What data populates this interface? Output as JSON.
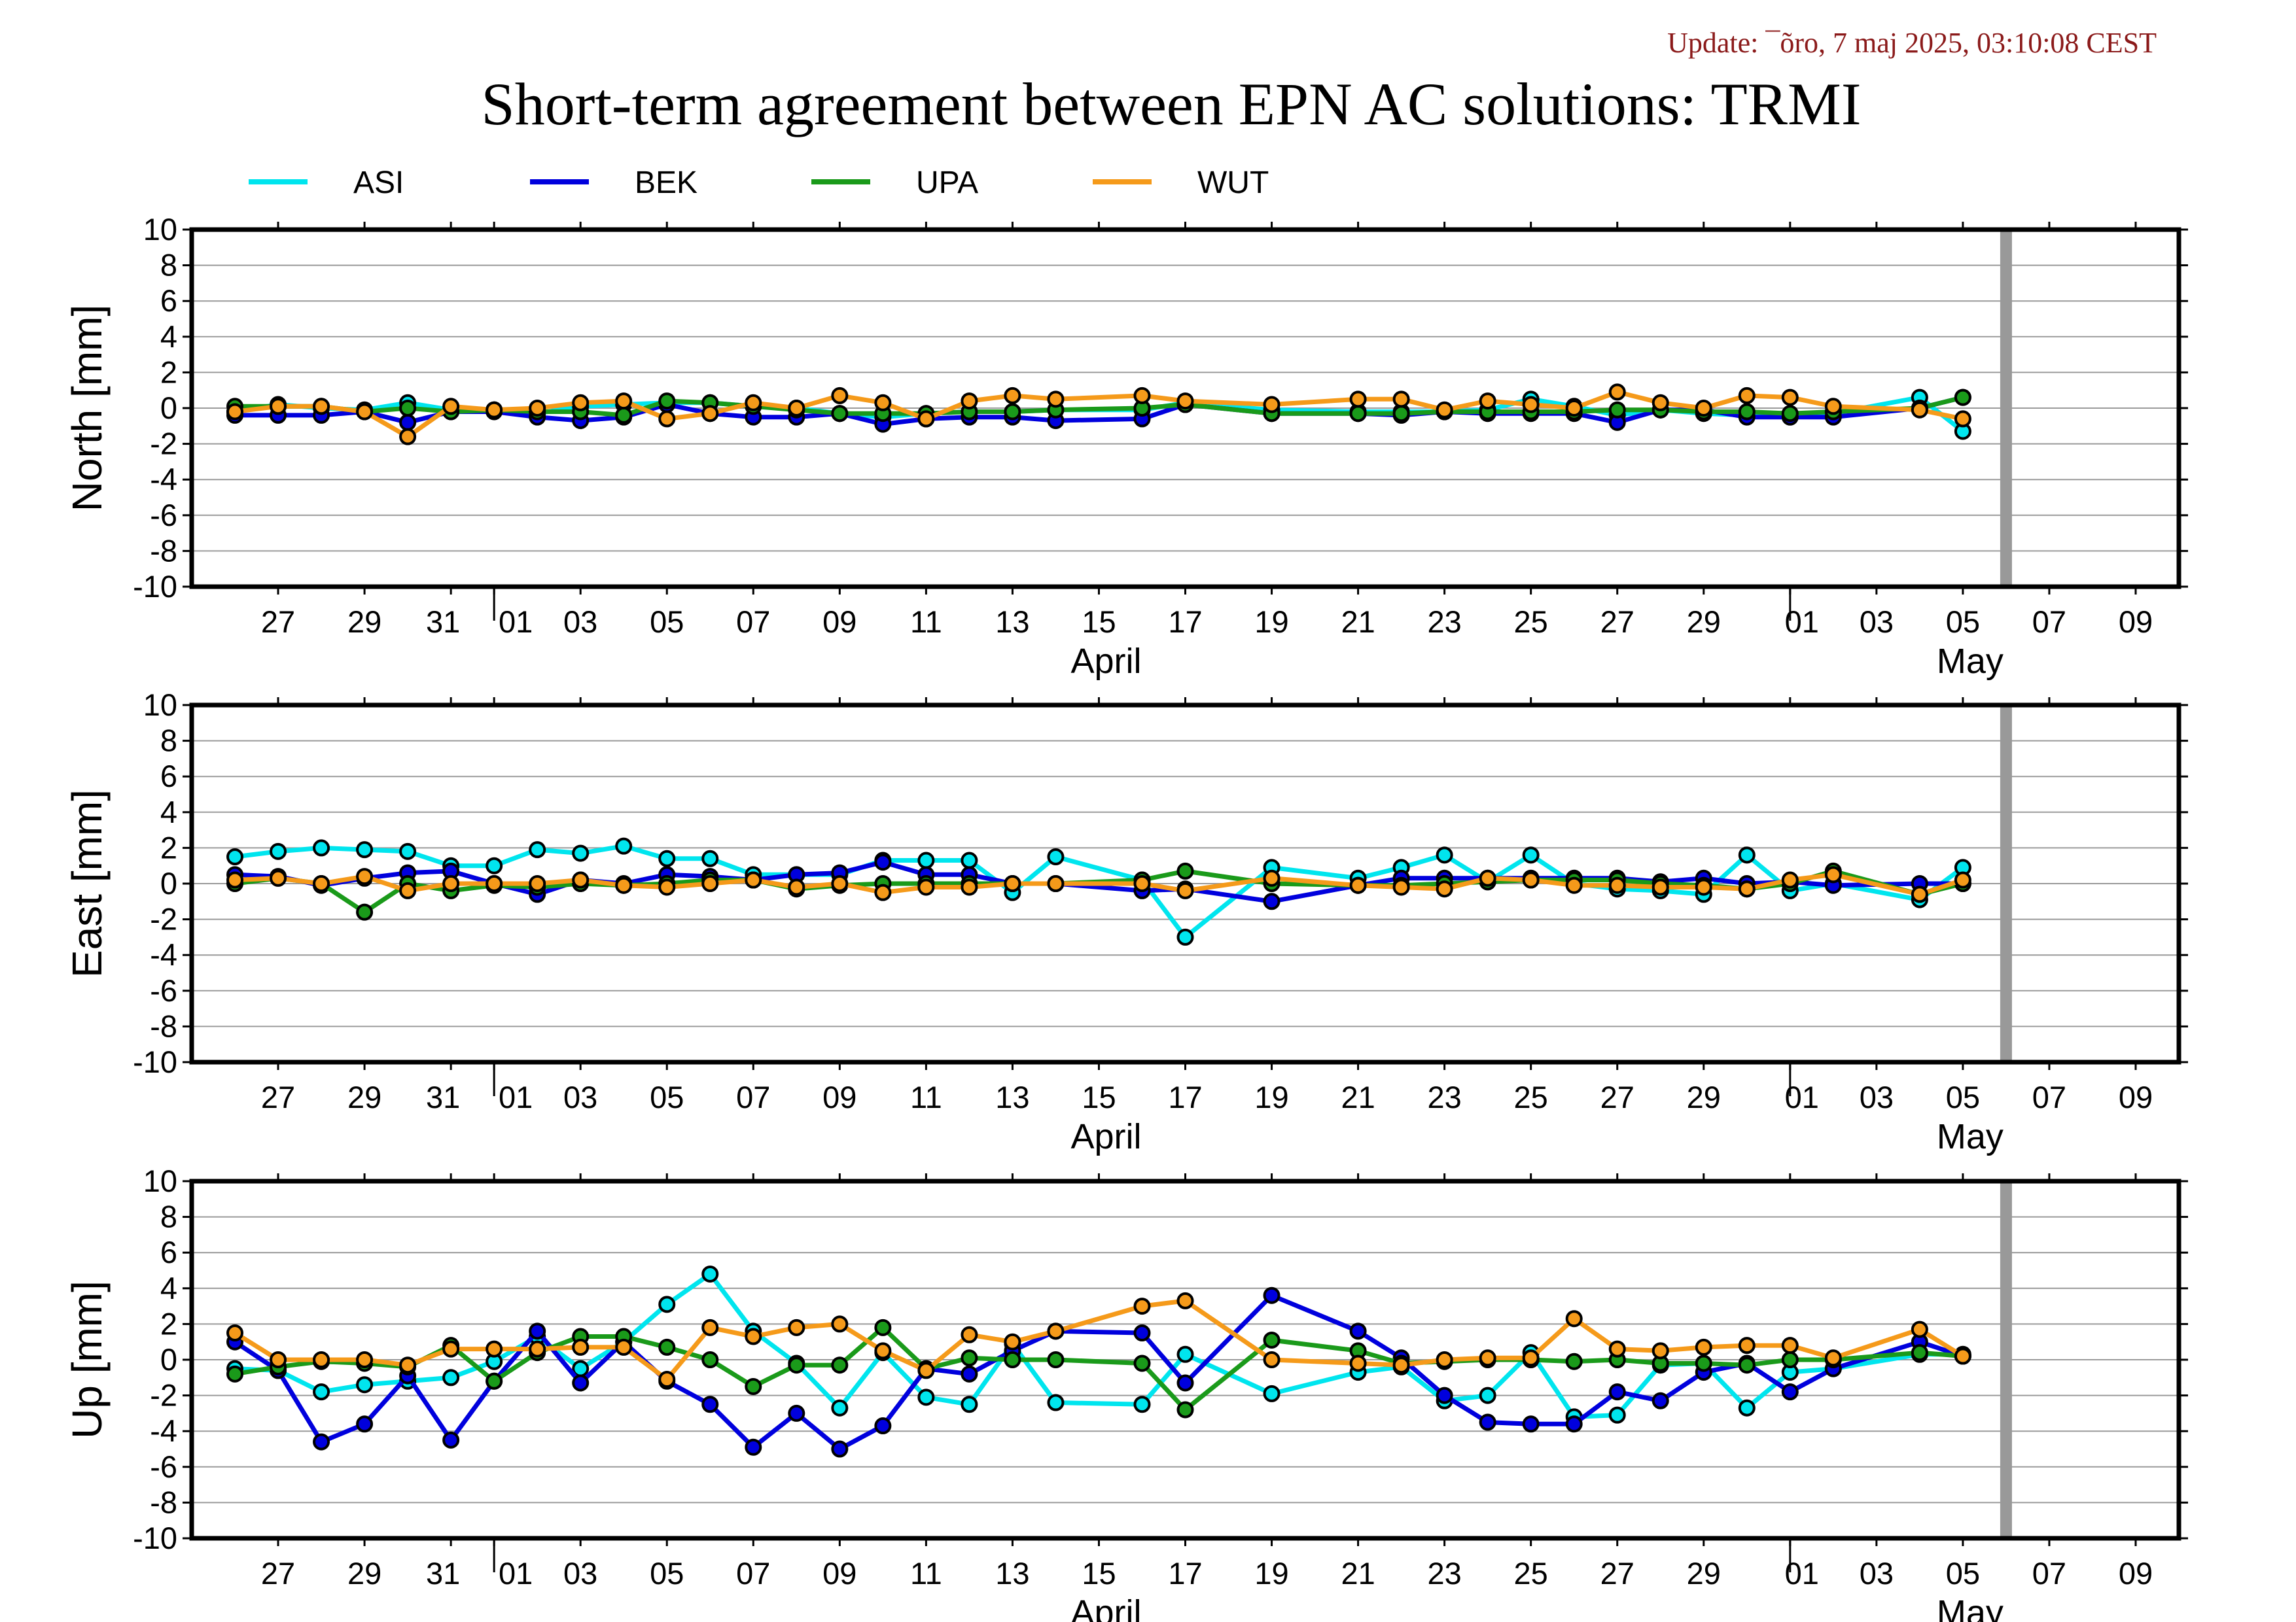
{
  "update": "Update: ¯õro, 7 maj 2025, 03:10:08 CEST",
  "title": "Short-term agreement between EPN AC solutions: TRMI",
  "legend": [
    {
      "name": "ASI",
      "color": "#00e5ee"
    },
    {
      "name": "BEK",
      "color": "#0000dd"
    },
    {
      "name": "UPA",
      "color": "#1a9a1a"
    },
    {
      "name": "WUT",
      "color": "#f59a1a"
    }
  ],
  "colors": {
    "grid": "#9a9a9a",
    "frame": "#000000",
    "today_line": "#999999"
  },
  "chart_data": [
    {
      "type": "line",
      "ylabel": "North [mm]",
      "ylim": [
        -10,
        10
      ],
      "yticks": [
        "-10",
        "-8",
        "-6",
        "-4",
        "-2",
        "0",
        "2",
        "4",
        "6",
        "8",
        "10"
      ],
      "x_dates": [
        "2025-03-26",
        "2025-03-27",
        "2025-03-28",
        "2025-03-29",
        "2025-03-30",
        "2025-03-31",
        "2025-04-01",
        "2025-04-02",
        "2025-04-03",
        "2025-04-04",
        "2025-04-05",
        "2025-04-06",
        "2025-04-07",
        "2025-04-08",
        "2025-04-09",
        "2025-04-10",
        "2025-04-11",
        "2025-04-12",
        "2025-04-13",
        "2025-04-14",
        "2025-04-16",
        "2025-04-17",
        "2025-04-19",
        "2025-04-21",
        "2025-04-22",
        "2025-04-23",
        "2025-04-24",
        "2025-04-25",
        "2025-04-26",
        "2025-04-27",
        "2025-04-28",
        "2025-04-29",
        "2025-04-30",
        "2025-05-01",
        "2025-05-02",
        "2025-05-04",
        "2025-05-05"
      ],
      "xlim": [
        "2025-03-25",
        "2025-05-10"
      ],
      "xticks": [
        "27",
        "29",
        "31",
        "01",
        "03",
        "05",
        "07",
        "09",
        "11",
        "13",
        "15",
        "17",
        "19",
        "21",
        "23",
        "25",
        "27",
        "29",
        "01",
        "03",
        "05",
        "07",
        "09"
      ],
      "month_labels": [
        "April",
        "May"
      ],
      "grid": true,
      "legend_position": "top",
      "series": [
        {
          "name": "ASI",
          "values": [
            -0.2,
            0.2,
            0.0,
            -0.1,
            0.3,
            -0.1,
            -0.1,
            -0.3,
            0.1,
            0.2,
            0.3,
            0.3,
            0.1,
            0.0,
            -0.3,
            -0.5,
            -0.3,
            -0.2,
            -0.2,
            -0.1,
            -0.1,
            0.3,
            -0.1,
            -0.2,
            -0.2,
            -0.2,
            -0.1,
            0.5,
            0.1,
            -0.4,
            -0.1,
            -0.3,
            -0.4,
            -0.5,
            -0.3,
            0.6,
            -1.3
          ]
        },
        {
          "name": "BEK",
          "values": [
            -0.4,
            -0.4,
            -0.4,
            -0.2,
            -0.8,
            -0.2,
            -0.2,
            -0.5,
            -0.7,
            -0.5,
            0.2,
            -0.3,
            -0.5,
            -0.5,
            -0.3,
            -0.9,
            -0.6,
            -0.5,
            -0.5,
            -0.7,
            -0.6,
            0.2,
            -0.3,
            -0.3,
            -0.4,
            -0.2,
            -0.3,
            -0.3,
            -0.3,
            -0.8,
            -0.1,
            -0.1,
            -0.5,
            -0.5,
            -0.5,
            0.0,
            0.6
          ]
        },
        {
          "name": "UPA",
          "values": [
            0.1,
            0.1,
            0.1,
            -0.2,
            0.0,
            -0.2,
            -0.1,
            -0.2,
            -0.2,
            -0.4,
            0.4,
            0.3,
            0.1,
            -0.1,
            -0.3,
            -0.3,
            -0.3,
            -0.2,
            -0.2,
            -0.1,
            0.0,
            0.2,
            -0.3,
            -0.3,
            -0.3,
            -0.2,
            -0.2,
            -0.2,
            -0.2,
            -0.1,
            -0.1,
            -0.2,
            -0.2,
            -0.3,
            -0.2,
            0.0,
            0.6
          ]
        },
        {
          "name": "WUT",
          "values": [
            -0.2,
            0.1,
            0.1,
            -0.2,
            -1.6,
            0.1,
            -0.1,
            0.0,
            0.3,
            0.4,
            -0.6,
            -0.3,
            0.3,
            0.0,
            0.7,
            0.3,
            -0.6,
            0.4,
            0.7,
            0.5,
            0.7,
            0.4,
            0.2,
            0.5,
            0.5,
            -0.1,
            0.4,
            0.2,
            0.0,
            0.9,
            0.3,
            0.0,
            0.7,
            0.6,
            0.1,
            -0.1,
            -0.6
          ]
        }
      ]
    },
    {
      "type": "line",
      "ylabel": "East [mm]",
      "ylim": [
        -10,
        10
      ],
      "yticks": [
        "-10",
        "-8",
        "-6",
        "-4",
        "-2",
        "0",
        "2",
        "4",
        "6",
        "8",
        "10"
      ],
      "x_dates": [
        "2025-03-26",
        "2025-03-27",
        "2025-03-28",
        "2025-03-29",
        "2025-03-30",
        "2025-03-31",
        "2025-04-01",
        "2025-04-02",
        "2025-04-03",
        "2025-04-04",
        "2025-04-05",
        "2025-04-06",
        "2025-04-07",
        "2025-04-08",
        "2025-04-09",
        "2025-04-10",
        "2025-04-11",
        "2025-04-12",
        "2025-04-13",
        "2025-04-14",
        "2025-04-16",
        "2025-04-17",
        "2025-04-19",
        "2025-04-21",
        "2025-04-22",
        "2025-04-23",
        "2025-04-24",
        "2025-04-25",
        "2025-04-26",
        "2025-04-27",
        "2025-04-28",
        "2025-04-29",
        "2025-04-30",
        "2025-05-01",
        "2025-05-02",
        "2025-05-04",
        "2025-05-05"
      ],
      "xlim": [
        "2025-03-25",
        "2025-05-10"
      ],
      "xticks": [
        "27",
        "29",
        "31",
        "01",
        "03",
        "05",
        "07",
        "09",
        "11",
        "13",
        "15",
        "17",
        "19",
        "21",
        "23",
        "25",
        "27",
        "29",
        "01",
        "03",
        "05",
        "07",
        "09"
      ],
      "month_labels": [
        "April",
        "May"
      ],
      "grid": true,
      "series": [
        {
          "name": "ASI",
          "values": [
            1.5,
            1.8,
            2.0,
            1.9,
            1.8,
            1.0,
            1.0,
            1.9,
            1.7,
            2.1,
            1.4,
            1.4,
            0.5,
            0.5,
            0.5,
            1.3,
            1.3,
            1.3,
            -0.5,
            1.5,
            0.2,
            -3.0,
            0.9,
            0.3,
            0.9,
            1.6,
            0.1,
            1.6,
            0.0,
            -0.3,
            -0.4,
            -0.6,
            1.6,
            -0.4,
            0.0,
            -0.9,
            0.9
          ]
        },
        {
          "name": "BEK",
          "values": [
            0.5,
            0.4,
            -0.1,
            0.3,
            0.6,
            0.7,
            0.0,
            -0.6,
            0.2,
            0.0,
            0.5,
            0.4,
            0.2,
            0.5,
            0.6,
            1.2,
            0.5,
            0.5,
            0.0,
            0.0,
            -0.4,
            -0.3,
            -1.0,
            -0.1,
            0.3,
            0.3,
            0.3,
            0.3,
            0.3,
            0.3,
            0.1,
            0.3,
            0.0,
            0.1,
            -0.1,
            0.0,
            0.0
          ]
        },
        {
          "name": "UPA",
          "values": [
            0.0,
            0.3,
            0.0,
            -1.6,
            0.0,
            -0.4,
            -0.1,
            -0.2,
            0.0,
            -0.1,
            0.0,
            0.2,
            0.2,
            -0.3,
            -0.1,
            0.0,
            0.0,
            0.0,
            0.0,
            0.0,
            0.2,
            0.7,
            0.0,
            -0.1,
            -0.1,
            0.0,
            0.1,
            0.2,
            0.2,
            0.2,
            0.0,
            -0.1,
            -0.3,
            0.0,
            0.7,
            -0.6,
            0.0
          ]
        },
        {
          "name": "WUT",
          "values": [
            0.2,
            0.3,
            0.0,
            0.4,
            -0.4,
            0.0,
            0.0,
            0.0,
            0.2,
            -0.1,
            -0.2,
            0.0,
            0.2,
            -0.2,
            0.0,
            -0.5,
            -0.2,
            -0.2,
            0.0,
            0.0,
            0.0,
            -0.4,
            0.3,
            -0.1,
            -0.2,
            -0.3,
            0.3,
            0.2,
            -0.1,
            -0.1,
            -0.2,
            -0.2,
            -0.3,
            0.2,
            0.5,
            -0.6,
            0.2
          ]
        }
      ]
    },
    {
      "type": "line",
      "ylabel": "Up [mm]",
      "ylim": [
        -10,
        10
      ],
      "yticks": [
        "-10",
        "-8",
        "-6",
        "-4",
        "-2",
        "0",
        "2",
        "4",
        "6",
        "8",
        "10"
      ],
      "x_dates": [
        "2025-03-26",
        "2025-03-27",
        "2025-03-28",
        "2025-03-29",
        "2025-03-30",
        "2025-03-31",
        "2025-04-01",
        "2025-04-02",
        "2025-04-03",
        "2025-04-04",
        "2025-04-05",
        "2025-04-06",
        "2025-04-07",
        "2025-04-08",
        "2025-04-09",
        "2025-04-10",
        "2025-04-11",
        "2025-04-12",
        "2025-04-13",
        "2025-04-14",
        "2025-04-16",
        "2025-04-17",
        "2025-04-19",
        "2025-04-21",
        "2025-04-22",
        "2025-04-23",
        "2025-04-24",
        "2025-04-25",
        "2025-04-26",
        "2025-04-27",
        "2025-04-28",
        "2025-04-29",
        "2025-04-30",
        "2025-05-01",
        "2025-05-02",
        "2025-05-04",
        "2025-05-05"
      ],
      "xlim": [
        "2025-03-25",
        "2025-05-10"
      ],
      "xticks": [
        "27",
        "29",
        "31",
        "01",
        "03",
        "05",
        "07",
        "09",
        "11",
        "13",
        "15",
        "17",
        "19",
        "21",
        "23",
        "25",
        "27",
        "29",
        "01",
        "03",
        "05",
        "07",
        "09"
      ],
      "month_labels": [
        "April",
        "May"
      ],
      "grid": true,
      "series": [
        {
          "name": "ASI",
          "values": [
            -0.5,
            -0.6,
            -1.8,
            -1.4,
            -1.2,
            -1.0,
            -0.1,
            1.3,
            -0.5,
            1.0,
            3.1,
            4.8,
            1.6,
            -0.2,
            -2.7,
            0.4,
            -2.1,
            -2.5,
            0.9,
            -2.4,
            -2.5,
            0.3,
            -1.9,
            -0.7,
            -0.4,
            -2.3,
            -2.0,
            0.4,
            -3.2,
            -3.1,
            -0.3,
            -0.2,
            -2.7,
            -0.7,
            -0.5,
            0.3,
            0.3
          ]
        },
        {
          "name": "BEK",
          "values": [
            1.0,
            -0.6,
            -4.6,
            -3.6,
            -0.9,
            -4.5,
            -1.2,
            1.6,
            -1.3,
            1.0,
            -1.2,
            -2.5,
            -4.9,
            -3.0,
            -5.0,
            -3.7,
            -0.5,
            -0.8,
            0.5,
            1.6,
            1.5,
            -1.3,
            3.6,
            1.6,
            0.1,
            -2.0,
            -3.5,
            -3.6,
            -3.6,
            -1.8,
            -2.3,
            -0.7,
            -0.2,
            -1.8,
            -0.5,
            1.0,
            0.2
          ]
        },
        {
          "name": "UPA",
          "values": [
            -0.8,
            -0.4,
            -0.1,
            -0.2,
            -0.4,
            0.8,
            -1.2,
            0.4,
            1.3,
            1.3,
            0.7,
            0.0,
            -1.5,
            -0.3,
            -0.3,
            1.8,
            -0.5,
            0.1,
            0.0,
            0.0,
            -0.2,
            -2.8,
            1.1,
            0.5,
            -0.2,
            -0.1,
            0.0,
            0.0,
            -0.1,
            0.0,
            -0.2,
            -0.2,
            -0.3,
            0.0,
            0.0,
            0.4,
            0.2
          ]
        },
        {
          "name": "WUT",
          "values": [
            1.5,
            0.0,
            0.0,
            0.0,
            -0.3,
            0.6,
            0.6,
            0.6,
            0.7,
            0.7,
            -1.1,
            1.8,
            1.3,
            1.8,
            2.0,
            0.5,
            -0.6,
            1.4,
            1.0,
            1.6,
            3.0,
            3.3,
            0.0,
            -0.2,
            -0.3,
            0.0,
            0.1,
            0.1,
            2.3,
            0.6,
            0.5,
            0.7,
            0.8,
            0.8,
            0.1,
            1.7,
            0.2
          ]
        }
      ]
    }
  ]
}
